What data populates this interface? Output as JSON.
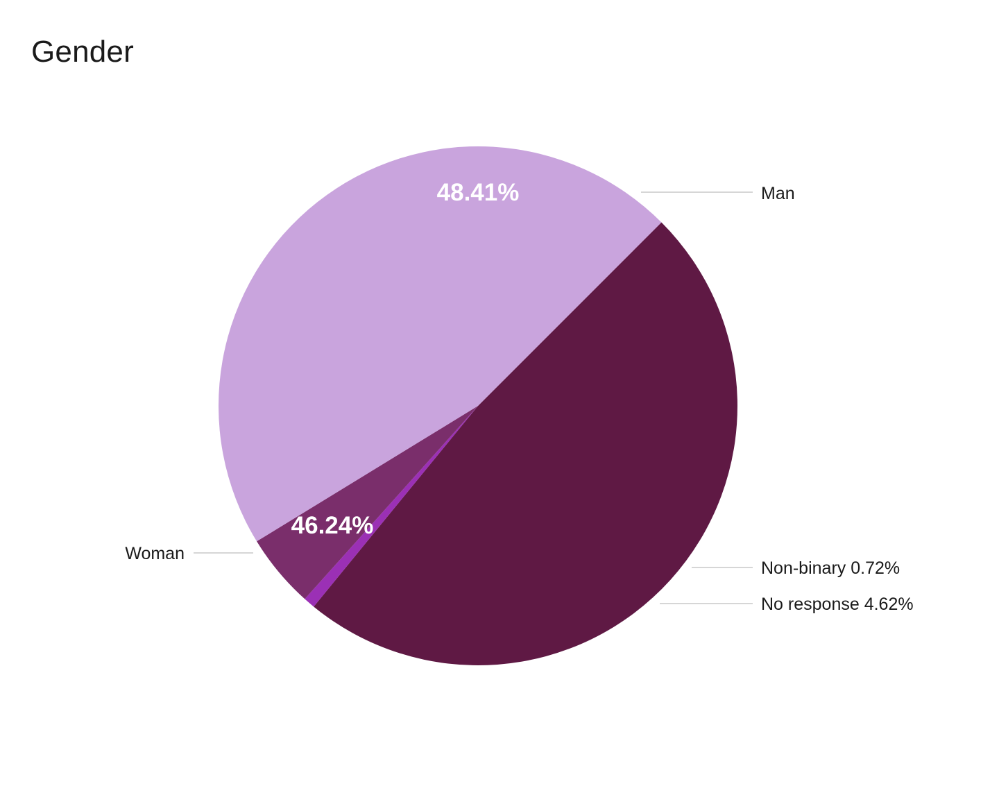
{
  "chart_data": {
    "type": "pie",
    "title": "Gender",
    "start_angle_deg": -45,
    "direction": "clockwise",
    "slices": [
      {
        "name": "Man",
        "value": 48.41,
        "color": "#5f1944",
        "inside_label": "48.41%",
        "outside_label": "Man"
      },
      {
        "name": "Non-binary",
        "value": 0.72,
        "color": "#9b30b5",
        "inside_label": "",
        "outside_label": "Non-binary 0.72%"
      },
      {
        "name": "No response",
        "value": 4.62,
        "color": "#7a2e6b",
        "inside_label": "",
        "outside_label": "No response 4.62%"
      },
      {
        "name": "Woman",
        "value": 46.24,
        "color": "#c9a4dd",
        "inside_label": "46.24%",
        "outside_label": "Woman"
      }
    ]
  }
}
